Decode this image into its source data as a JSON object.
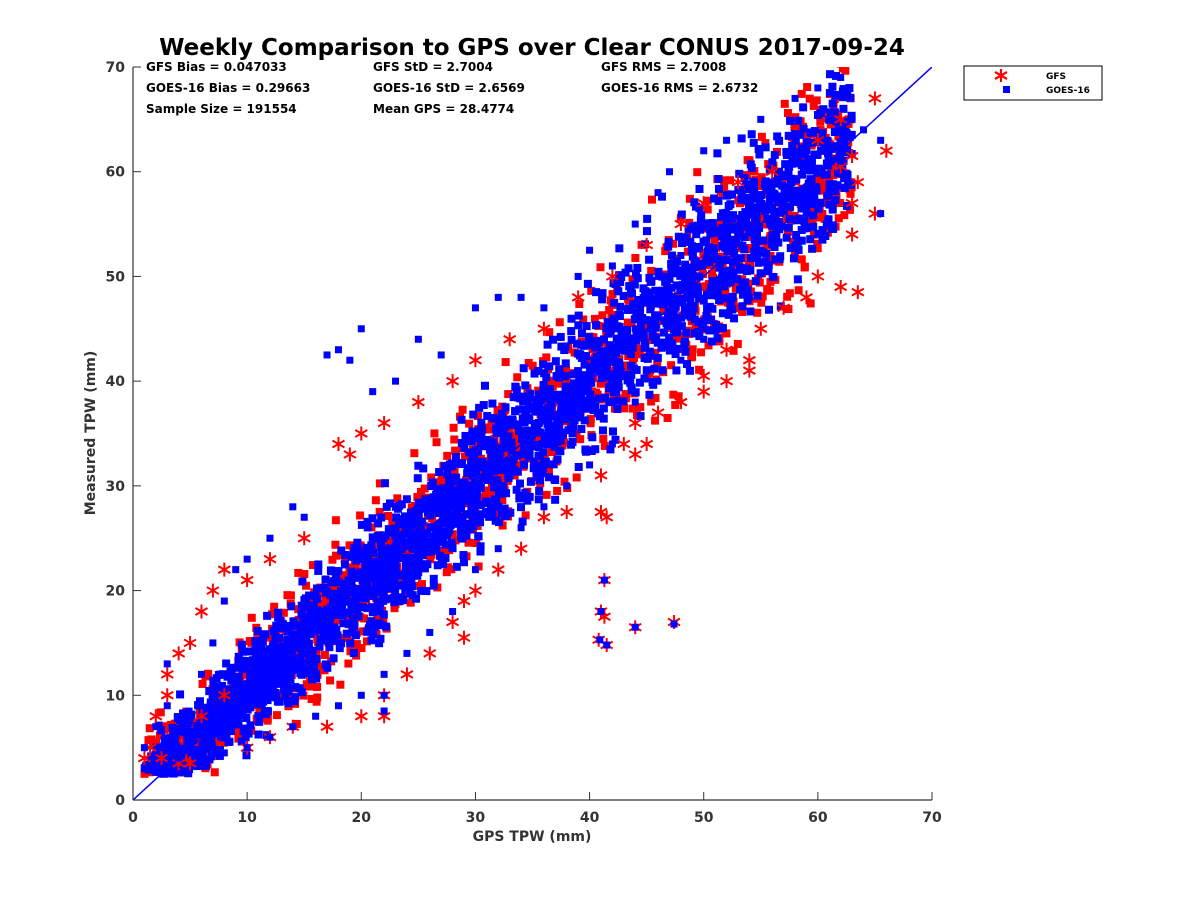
{
  "chart_data": {
    "type": "scatter",
    "title": "Weekly Comparison to GPS over Clear CONUS 2017-09-24",
    "xlabel": "GPS TPW (mm)",
    "ylabel": "Measured TPW (mm)",
    "xlim": [
      0,
      70
    ],
    "ylim": [
      0,
      70
    ],
    "xticks": [
      "0",
      "10",
      "20",
      "30",
      "40",
      "50",
      "60",
      "70"
    ],
    "yticks": [
      "0",
      "10",
      "20",
      "30",
      "40",
      "50",
      "60",
      "70"
    ],
    "grid": false,
    "legend_position": "outside-top-right",
    "reference_line": {
      "type": "one-to-one",
      "color": "#0000ff"
    },
    "stats": [
      "GFS Bias = 0.047033",
      "GFS StD = 2.7004",
      "GFS RMS = 2.7008",
      "GOES-16 Bias = 0.29663",
      "GOES-16 StD = 2.6569",
      "GOES-16 RMS = 2.6732",
      "Sample Size = 191554",
      "Mean GPS = 28.4774"
    ],
    "series": [
      {
        "name": "GFS",
        "marker": "asterisk",
        "color": "#ff0000",
        "points": [
          [
            1,
            4
          ],
          [
            1.5,
            5
          ],
          [
            2,
            8
          ],
          [
            3,
            10
          ],
          [
            3,
            12
          ],
          [
            2.5,
            4
          ],
          [
            4,
            3.5
          ],
          [
            5,
            3.5
          ],
          [
            4,
            14
          ],
          [
            5,
            15
          ],
          [
            6,
            18
          ],
          [
            7,
            20
          ],
          [
            8,
            22
          ],
          [
            6,
            8
          ],
          [
            8,
            10
          ],
          [
            10,
            5
          ],
          [
            12,
            6
          ],
          [
            14,
            7
          ],
          [
            10,
            21
          ],
          [
            12,
            23
          ],
          [
            15,
            25
          ],
          [
            18,
            34
          ],
          [
            19,
            33
          ],
          [
            20,
            35
          ],
          [
            22,
            36
          ],
          [
            25,
            38
          ],
          [
            28,
            40
          ],
          [
            30,
            42
          ],
          [
            33,
            44
          ],
          [
            36,
            45
          ],
          [
            39,
            48
          ],
          [
            42,
            50
          ],
          [
            45,
            53
          ],
          [
            48,
            55
          ],
          [
            50,
            57
          ],
          [
            53,
            59
          ],
          [
            56,
            60
          ],
          [
            60,
            63
          ],
          [
            62,
            65
          ],
          [
            65,
            67
          ],
          [
            66,
            62
          ],
          [
            65,
            56
          ],
          [
            63,
            54
          ],
          [
            60,
            50
          ],
          [
            62,
            49
          ],
          [
            63.5,
            48.5
          ],
          [
            59,
            48
          ],
          [
            57,
            47
          ],
          [
            55,
            45
          ],
          [
            54,
            42
          ],
          [
            52,
            40
          ],
          [
            50,
            39
          ],
          [
            48,
            38
          ],
          [
            46,
            37
          ],
          [
            44,
            36
          ],
          [
            43,
            34
          ],
          [
            41,
            31
          ],
          [
            38,
            27.5
          ],
          [
            36,
            27
          ],
          [
            34,
            24
          ],
          [
            32,
            22
          ],
          [
            30,
            20
          ],
          [
            29,
            19
          ],
          [
            28,
            17
          ],
          [
            29,
            15.5
          ],
          [
            26,
            14
          ],
          [
            24,
            12
          ],
          [
            22,
            10
          ],
          [
            22,
            8
          ],
          [
            20,
            8
          ],
          [
            17,
            7
          ],
          [
            41,
            27.5
          ],
          [
            41.5,
            27
          ],
          [
            41.3,
            21
          ],
          [
            41,
            18
          ],
          [
            41.3,
            17.5
          ],
          [
            40.8,
            15.3
          ],
          [
            41.5,
            14.8
          ],
          [
            44,
            16.5
          ],
          [
            47.4,
            17
          ],
          [
            44,
            33
          ],
          [
            45,
            34
          ],
          [
            48,
            38
          ],
          [
            50,
            40.5
          ],
          [
            54,
            41
          ],
          [
            52,
            43
          ],
          [
            62,
            60.5
          ],
          [
            63,
            61.5
          ],
          [
            63.5,
            59
          ],
          [
            63,
            57
          ]
        ]
      },
      {
        "name": "GOES-16",
        "marker": "square",
        "color": "#0000ff",
        "points": [
          [
            1,
            5
          ],
          [
            2,
            7
          ],
          [
            3,
            9
          ],
          [
            3,
            13
          ],
          [
            4,
            4
          ],
          [
            5,
            6
          ],
          [
            6,
            12
          ],
          [
            7,
            15
          ],
          [
            8,
            19
          ],
          [
            9,
            22
          ],
          [
            10,
            23
          ],
          [
            12,
            25
          ],
          [
            14,
            28
          ],
          [
            15,
            27
          ],
          [
            17,
            42.5
          ],
          [
            18,
            43
          ],
          [
            19,
            42
          ],
          [
            20,
            45
          ],
          [
            21,
            39
          ],
          [
            23,
            40
          ],
          [
            25,
            44
          ],
          [
            27,
            42.5
          ],
          [
            30,
            47
          ],
          [
            32,
            48
          ],
          [
            34,
            48
          ],
          [
            36,
            47
          ],
          [
            39,
            50
          ],
          [
            40,
            52.5
          ],
          [
            42,
            51
          ],
          [
            44,
            55
          ],
          [
            46,
            58
          ],
          [
            47,
            60
          ],
          [
            50,
            62
          ],
          [
            52,
            63
          ],
          [
            55,
            65
          ],
          [
            58,
            67
          ],
          [
            60,
            68
          ],
          [
            62,
            69
          ],
          [
            63,
            65
          ],
          [
            64,
            64
          ],
          [
            65.5,
            63
          ],
          [
            65.5,
            56
          ],
          [
            58,
            53
          ],
          [
            56,
            50
          ],
          [
            54,
            48
          ],
          [
            50,
            44
          ],
          [
            48,
            42
          ],
          [
            46,
            40
          ],
          [
            44,
            38
          ],
          [
            42,
            34
          ],
          [
            40,
            32
          ],
          [
            38,
            30
          ],
          [
            36,
            28
          ],
          [
            34,
            26
          ],
          [
            32,
            24
          ],
          [
            30,
            22
          ],
          [
            28,
            18
          ],
          [
            26,
            16
          ],
          [
            24,
            14
          ],
          [
            22,
            12
          ],
          [
            20,
            10
          ],
          [
            18,
            9
          ],
          [
            16,
            8
          ],
          [
            14,
            7
          ],
          [
            12,
            6
          ],
          [
            10,
            5
          ],
          [
            8,
            4.5
          ],
          [
            22,
            10
          ],
          [
            22,
            8.5
          ],
          [
            41.3,
            21
          ],
          [
            41,
            18
          ],
          [
            40.9,
            15.3
          ],
          [
            41.5,
            14.8
          ],
          [
            44,
            16.5
          ],
          [
            47.4,
            16.8
          ],
          [
            44,
            45
          ],
          [
            46,
            50
          ],
          [
            48,
            52
          ],
          [
            52,
            55
          ],
          [
            54,
            57
          ],
          [
            56,
            59
          ],
          [
            60,
            60
          ],
          [
            61,
            58
          ],
          [
            62,
            61
          ]
        ]
      }
    ]
  }
}
